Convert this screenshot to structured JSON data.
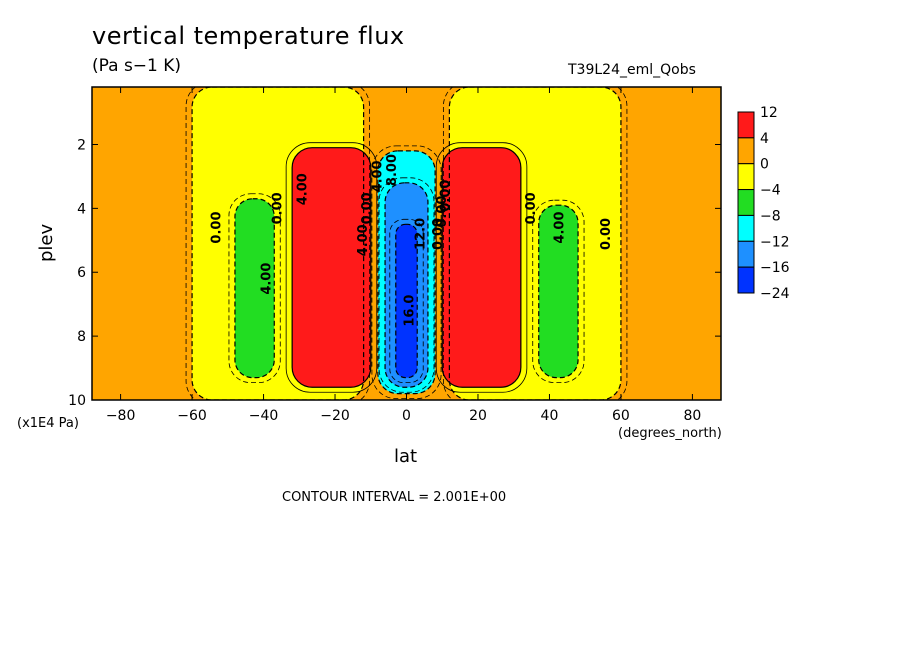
{
  "chart_data": {
    "type": "heatmap",
    "title": "vertical temperature flux",
    "units": "(Pa s−1 K)",
    "run_label": "T39L24_eml_Qobs",
    "xlabel": "lat",
    "ylabel": "plev",
    "x_units": "(degrees_north)",
    "y_units": "(x1E4 Pa)",
    "contour_interval": "CONTOUR INTERVAL = 2.001E+00",
    "xlim": [
      -88,
      88
    ],
    "ylim": [
      10,
      0.2
    ],
    "y_reversed": true,
    "x_ticks": [
      "−80",
      "−60",
      "−40",
      "−20",
      "0",
      "20",
      "40",
      "60",
      "80"
    ],
    "y_ticks": [
      "2",
      "4",
      "6",
      "8",
      "10"
    ],
    "colorbar": {
      "labels": [
        "12",
        "4",
        "0",
        "−4",
        "−8",
        "−12",
        "−16",
        "−24"
      ],
      "colors": [
        "#ff1a1a",
        "#ffa500",
        "#ffff00",
        "#22dd22",
        "#00ffff",
        "#1e90ff",
        "#0033ff"
      ]
    },
    "regions": [
      {
        "level": "0 to 4",
        "color": "#ffa500",
        "lat": [
          -88,
          88
        ],
        "plev": [
          0.2,
          10
        ]
      },
      {
        "level": "-4 to 0",
        "color": "#ffff00",
        "lat": [
          -60,
          -12
        ],
        "plev": [
          0.2,
          10
        ]
      },
      {
        "level": "-4 to 0",
        "color": "#ffff00",
        "lat": [
          12,
          60
        ],
        "plev": [
          0.2,
          10
        ]
      },
      {
        "level": "-8 to -4",
        "color": "#22dd22",
        "lat": [
          -48,
          -37
        ],
        "plev": [
          3.7,
          9.3
        ]
      },
      {
        "level": "-8 to -4",
        "color": "#22dd22",
        "lat": [
          37,
          48
        ],
        "plev": [
          3.9,
          9.3
        ]
      },
      {
        "level": "> 4",
        "color": "#ff1a1a",
        "lat": [
          -32,
          -10
        ],
        "plev": [
          2.1,
          9.6
        ]
      },
      {
        "level": "> 4",
        "color": "#ff1a1a",
        "lat": [
          10,
          32
        ],
        "plev": [
          2.1,
          9.6
        ]
      },
      {
        "level": "< -8",
        "color": "#00ffff",
        "lat": [
          -8,
          8
        ],
        "plev": [
          2.2,
          9.8
        ]
      },
      {
        "level": "< -12",
        "color": "#1e90ff",
        "lat": [
          -6,
          6
        ],
        "plev": [
          3.2,
          9.6
        ]
      },
      {
        "level": "< -16",
        "color": "#0033ff",
        "lat": [
          -3,
          3
        ],
        "plev": [
          4.5,
          9.3
        ]
      }
    ],
    "contour_labels": [
      "0.00",
      "0.00",
      "4.00",
      "4.00",
      "0.00",
      "4.00",
      "8.00",
      "0.00",
      "0.00",
      "12.0",
      "16.0",
      "0.00",
      "4.00",
      "0.00",
      "4.00",
      "0.00"
    ]
  }
}
